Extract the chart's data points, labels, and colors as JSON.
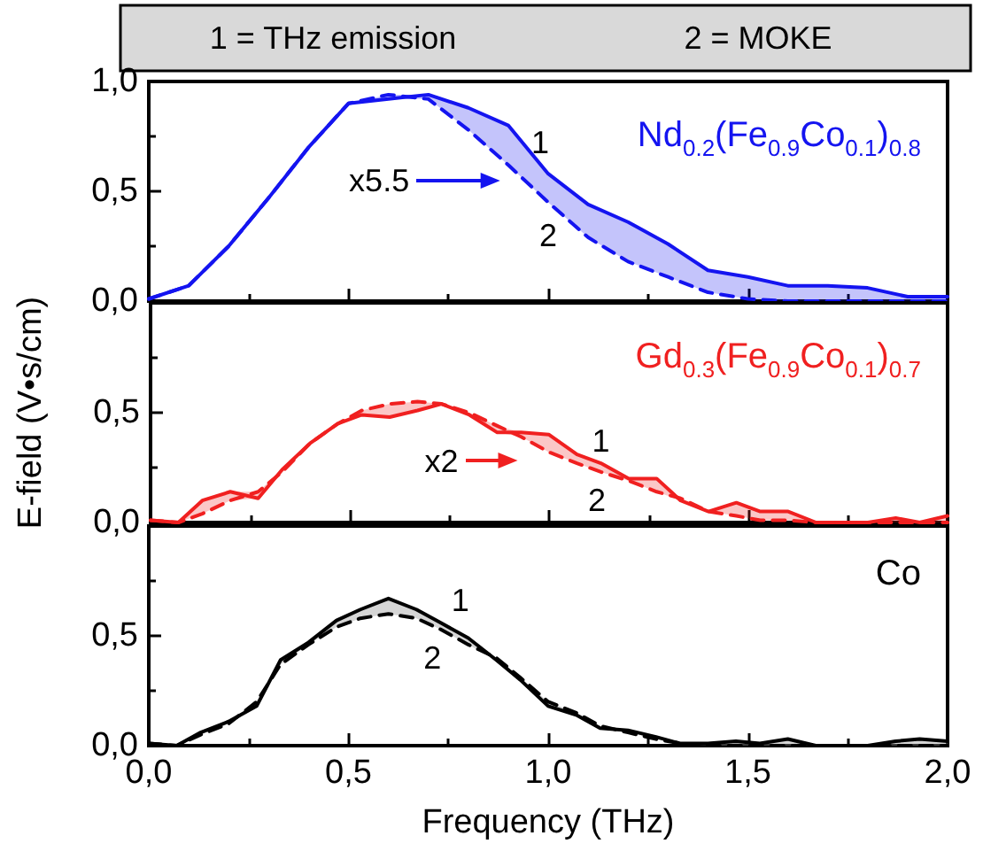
{
  "chart_data": [
    {
      "type": "line",
      "title": "Nd$_{0.2}$(Fe$_{0.9}$Co$_{0.1}$)$_{0.8}$",
      "x": [
        0,
        0.1,
        0.2,
        0.3,
        0.4,
        0.5,
        0.6,
        0.7,
        0.8,
        0.9,
        1.0,
        1.1,
        1.2,
        1.3,
        1.4,
        1.5,
        1.6,
        1.7,
        1.8,
        1.9,
        2.0
      ],
      "series": [
        {
          "color": "#1414f0",
          "line_style": "solid",
          "values": [
            0.01,
            0.07,
            0.25,
            0.47,
            0.7,
            0.9,
            0.92,
            0.94,
            0.88,
            0.8,
            0.58,
            0.44,
            0.36,
            0.26,
            0.14,
            0.11,
            0.07,
            0.07,
            0.06,
            0.02,
            0.02
          ],
          "lower": [
            0.01,
            0.07,
            0.25,
            0.47,
            0.7,
            0.9,
            0.92,
            0.92,
            0.78,
            0.62,
            0.45,
            0.29,
            0.18,
            0.11,
            0.04,
            0.01,
            0,
            0,
            0,
            0,
            0
          ],
          "upper": [
            0.01,
            0.07,
            0.25,
            0.47,
            0.7,
            0.9,
            0.94,
            0.94,
            0.88,
            0.8,
            0.58,
            0.44,
            0.36,
            0.26,
            0.14,
            0.11,
            0.07,
            0.07,
            0.06,
            0.02,
            0.02
          ]
        },
        {
          "color": "#1414f0",
          "line_style": "dashed",
          "values": [
            0.01,
            0.07,
            0.25,
            0.47,
            0.7,
            0.9,
            0.94,
            0.92,
            0.78,
            0.62,
            0.45,
            0.29,
            0.18,
            0.11,
            0.04,
            0.01,
            0,
            0,
            0,
            0,
            0
          ]
        }
      ],
      "annotations": [
        "1 = THz emission",
        "2 = MOKE",
        "x5.5",
        "1",
        "2"
      ],
      "xlim": [
        0,
        2
      ],
      "ylim": [
        0,
        1
      ],
      "xticks": [
        0,
        0.5,
        1,
        1.5,
        2
      ],
      "yticks": [
        {
          "value": 0,
          "label": "0,0"
        },
        {
          "value": 0.5,
          "label": "0,5"
        },
        {
          "value": 1,
          "label": "1,0"
        }
      ],
      "tick_labels": "y",
      "marker": "none",
      "grid": false
    },
    {
      "type": "line",
      "title": "Gd$_{0.3}$(Fe$_{0.9}$Co$_{0.1}$)$_{0.7}$",
      "ylabel": "E-field (V•s/cm)",
      "x": [
        0,
        0.07,
        0.13,
        0.2,
        0.27,
        0.33,
        0.4,
        0.47,
        0.53,
        0.6,
        0.67,
        0.73,
        0.8,
        0.87,
        0.93,
        1.0,
        1.07,
        1.13,
        1.2,
        1.27,
        1.33,
        1.4,
        1.47,
        1.53,
        1.6,
        1.67,
        1.73,
        1.8,
        1.87,
        1.93,
        2.0
      ],
      "series": [
        {
          "color": "#f02020",
          "line_style": "solid",
          "values": [
            0.01,
            0,
            0.1,
            0.14,
            0.11,
            0.24,
            0.36,
            0.45,
            0.49,
            0.48,
            0.51,
            0.54,
            0.49,
            0.41,
            0.41,
            0.4,
            0.31,
            0.27,
            0.2,
            0.2,
            0.1,
            0.05,
            0.09,
            0.05,
            0.05,
            0,
            0,
            0,
            0.02,
            0,
            0.03
          ],
          "lower": [
            0.01,
            0,
            0.04,
            0.1,
            0.11,
            0.23,
            0.36,
            0.45,
            0.49,
            0.48,
            0.51,
            0.54,
            0.49,
            0.41,
            0.39,
            0.32,
            0.27,
            0.23,
            0.19,
            0.14,
            0.1,
            0.05,
            0.03,
            0.01,
            0.01,
            0,
            0,
            0,
            0,
            0,
            0
          ],
          "upper": [
            0.01,
            0,
            0.1,
            0.14,
            0.14,
            0.24,
            0.36,
            0.45,
            0.51,
            0.54,
            0.55,
            0.54,
            0.5,
            0.44,
            0.41,
            0.4,
            0.31,
            0.27,
            0.2,
            0.2,
            0.11,
            0.05,
            0.09,
            0.05,
            0.05,
            0,
            0,
            0,
            0.02,
            0,
            0.03
          ]
        },
        {
          "color": "#f02020",
          "line_style": "dashed",
          "values": [
            0.01,
            0,
            0.04,
            0.1,
            0.14,
            0.23,
            0.36,
            0.45,
            0.51,
            0.54,
            0.55,
            0.54,
            0.5,
            0.44,
            0.39,
            0.32,
            0.27,
            0.23,
            0.19,
            0.14,
            0.11,
            0.05,
            0.03,
            0.01,
            0.01,
            0,
            0,
            0,
            0,
            0,
            0
          ]
        }
      ],
      "annotations": [
        "x2",
        "1",
        "2"
      ],
      "xlim": [
        0,
        2
      ],
      "ylim": [
        0,
        1
      ],
      "xticks": [
        0,
        0.5,
        1,
        1.5,
        2
      ],
      "yticks": [
        {
          "value": 0,
          "label": "0,0"
        },
        {
          "value": 0.5,
          "label": "0,5"
        },
        {
          "value": 1,
          "label": null
        }
      ],
      "tick_labels": "y",
      "marker": "none",
      "grid": false
    },
    {
      "type": "line",
      "title": "Co",
      "xlabel": "Frequency (THz)",
      "x": [
        0,
        0.07,
        0.13,
        0.2,
        0.27,
        0.33,
        0.4,
        0.47,
        0.53,
        0.6,
        0.67,
        0.73,
        0.8,
        0.87,
        0.93,
        1.0,
        1.07,
        1.13,
        1.2,
        1.27,
        1.33,
        1.4,
        1.47,
        1.53,
        1.6,
        1.67,
        1.73,
        1.8,
        1.87,
        1.93,
        2.0
      ],
      "series": [
        {
          "color": "#000000",
          "line_style": "solid",
          "values": [
            0.01,
            0,
            0.06,
            0.11,
            0.18,
            0.39,
            0.47,
            0.57,
            0.62,
            0.67,
            0.62,
            0.56,
            0.49,
            0.39,
            0.3,
            0.18,
            0.14,
            0.08,
            0.07,
            0.04,
            0.01,
            0.01,
            0.02,
            0.01,
            0.03,
            0,
            0,
            0,
            0.02,
            0.03,
            0.02
          ],
          "lower": [
            0.01,
            0,
            0.05,
            0.1,
            0.18,
            0.37,
            0.46,
            0.54,
            0.58,
            0.6,
            0.58,
            0.53,
            0.46,
            0.39,
            0.3,
            0.18,
            0.14,
            0.08,
            0.06,
            0.03,
            0.01,
            0,
            0,
            0,
            0,
            0,
            0,
            0,
            0,
            0,
            0
          ],
          "upper": [
            0.01,
            0,
            0.06,
            0.11,
            0.2,
            0.39,
            0.47,
            0.57,
            0.62,
            0.67,
            0.62,
            0.56,
            0.49,
            0.4,
            0.31,
            0.2,
            0.15,
            0.09,
            0.07,
            0.04,
            0.01,
            0.01,
            0.02,
            0.01,
            0.03,
            0,
            0,
            0,
            0.02,
            0.03,
            0.02
          ]
        },
        {
          "color": "#000000",
          "line_style": "dashed",
          "values": [
            0.01,
            0,
            0.05,
            0.1,
            0.2,
            0.37,
            0.46,
            0.54,
            0.58,
            0.6,
            0.58,
            0.53,
            0.46,
            0.4,
            0.31,
            0.2,
            0.15,
            0.09,
            0.06,
            0.03,
            0.01,
            0,
            0,
            0,
            0,
            0,
            0,
            0,
            0,
            0,
            0
          ]
        }
      ],
      "annotations": [
        "1",
        "2"
      ],
      "xlim": [
        0,
        2
      ],
      "ylim": [
        0,
        1
      ],
      "xticks": [
        {
          "value": 0,
          "label": "0,0"
        },
        {
          "value": 0.5,
          "label": "0,5"
        },
        {
          "value": 1,
          "label": "1,0"
        },
        {
          "value": 1.5,
          "label": "1,5"
        },
        {
          "value": 2,
          "label": "2,0"
        }
      ],
      "yticks": [
        {
          "value": 0,
          "label": "0,0"
        },
        {
          "value": 0.5,
          "label": "0,5"
        },
        {
          "value": 1,
          "label": null
        }
      ],
      "marker": "none",
      "grid": false
    }
  ]
}
